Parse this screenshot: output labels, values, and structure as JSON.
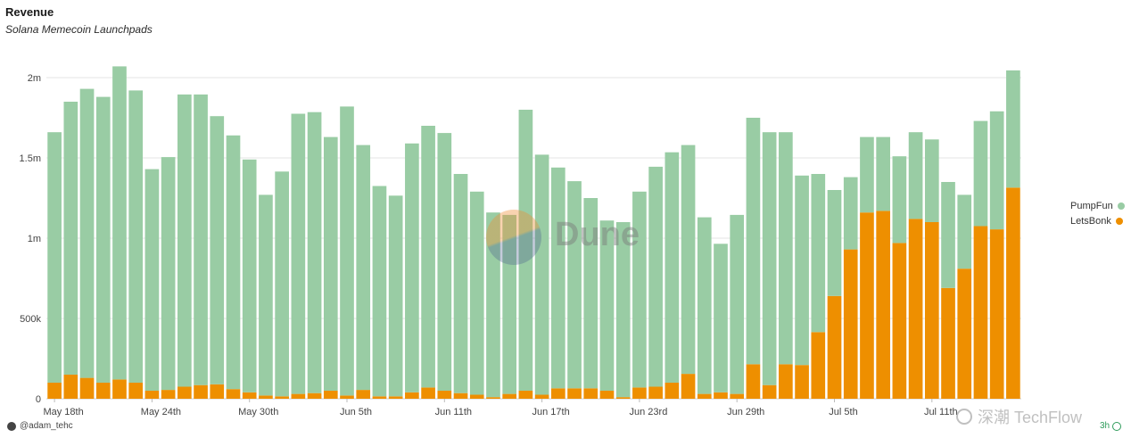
{
  "chart_data": {
    "type": "bar",
    "stacked": true,
    "title": "Revenue",
    "subtitle": "Solana Memecoin Launchpads",
    "ylim": [
      0,
      2150000
    ],
    "y_ticks": [
      {
        "value": 0,
        "label": "0"
      },
      {
        "value": 500000,
        "label": "500k"
      },
      {
        "value": 1000000,
        "label": "1m"
      },
      {
        "value": 1500000,
        "label": "1.5m"
      },
      {
        "value": 2000000,
        "label": "2m"
      }
    ],
    "x_tick_labels": [
      {
        "index": 0,
        "label": "May 18th"
      },
      {
        "index": 6,
        "label": "May 24th"
      },
      {
        "index": 12,
        "label": "May 30th"
      },
      {
        "index": 18,
        "label": "Jun 5th"
      },
      {
        "index": 24,
        "label": "Jun 11th"
      },
      {
        "index": 30,
        "label": "Jun 17th"
      },
      {
        "index": 36,
        "label": "Jun 23rd"
      },
      {
        "index": 42,
        "label": "Jun 29th"
      },
      {
        "index": 48,
        "label": "Jul 5th"
      },
      {
        "index": 54,
        "label": "Jul 11th"
      }
    ],
    "grid": true,
    "legend_position": "right",
    "series": [
      {
        "name": "LetsBonk",
        "color": "#ee8f00",
        "values": [
          100000,
          150000,
          130000,
          100000,
          120000,
          100000,
          50000,
          55000,
          75000,
          85000,
          90000,
          60000,
          40000,
          20000,
          15000,
          30000,
          35000,
          50000,
          20000,
          55000,
          15000,
          15000,
          40000,
          70000,
          50000,
          35000,
          25000,
          10000,
          30000,
          50000,
          25000,
          65000,
          65000,
          65000,
          50000,
          10000,
          70000,
          75000,
          100000,
          155000,
          30000,
          40000,
          30000,
          215000,
          85000,
          215000,
          210000,
          415000,
          640000,
          930000,
          1160000,
          1170000,
          970000,
          1120000,
          1100000,
          690000,
          810000,
          1075000,
          1055000,
          1315000
        ]
      },
      {
        "name": "PumpFun",
        "color": "#99cca4",
        "values": [
          1560000,
          1700000,
          1800000,
          1780000,
          1950000,
          1820000,
          1380000,
          1450000,
          1820000,
          1810000,
          1670000,
          1580000,
          1450000,
          1250000,
          1400000,
          1745000,
          1750000,
          1580000,
          1800000,
          1525000,
          1310000,
          1250000,
          1550000,
          1630000,
          1605000,
          1365000,
          1265000,
          1150000,
          1115000,
          1750000,
          1495000,
          1375000,
          1290000,
          1185000,
          1060000,
          1090000,
          1220000,
          1370000,
          1435000,
          1425000,
          1100000,
          925000,
          1115000,
          1535000,
          1575000,
          1445000,
          1180000,
          985000,
          660000,
          450000,
          470000,
          460000,
          540000,
          540000,
          515000,
          660000,
          460000,
          655000,
          735000,
          730000
        ]
      }
    ]
  },
  "header": {
    "title": "Revenue",
    "subtitle": "Solana Memecoin Launchpads"
  },
  "legend": {
    "items": [
      {
        "label": "PumpFun",
        "color": "#99cca4"
      },
      {
        "label": "LetsBonk",
        "color": "#ee8f00"
      }
    ]
  },
  "footer": {
    "user": "@adam_tehc",
    "refresh": "3h"
  },
  "watermarks": {
    "dune": "Dune",
    "techflow": "深潮 TechFlow"
  }
}
